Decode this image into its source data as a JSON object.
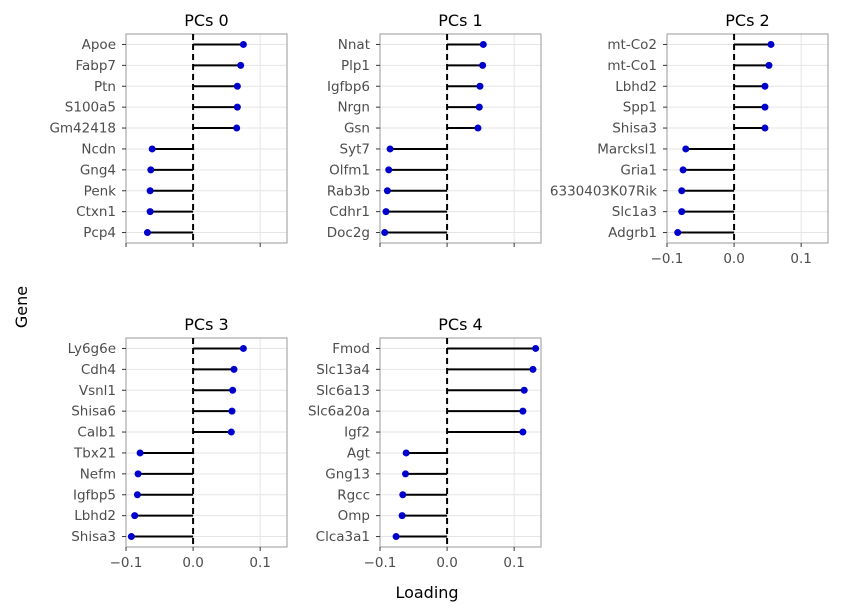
{
  "chart_data": {
    "type": "lollipop",
    "xlabel": "Loading",
    "ylabel": "Gene",
    "xlim": [
      -0.1,
      0.14
    ],
    "xticks": [
      -0.1,
      0.0,
      0.1
    ],
    "xtick_labels": [
      "−0.1",
      "0.0",
      "0.1"
    ],
    "grid": true,
    "colors": {
      "point": "#0000cc",
      "stem": "#000000",
      "zero_line": "#000000",
      "grid": "#e5e5e5",
      "frame": "#999999"
    },
    "panels": [
      {
        "title": "PCs 0",
        "genes": [
          "Apoe",
          "Fabp7",
          "Ptn",
          "S100a5",
          "Gm42418",
          "Ncdn",
          "Gng4",
          "Penk",
          "Ctxn1",
          "Pcp4"
        ],
        "values": [
          0.075,
          0.071,
          0.066,
          0.066,
          0.065,
          -0.061,
          -0.063,
          -0.064,
          -0.064,
          -0.068
        ],
        "show_tick_labels": false
      },
      {
        "title": "PCs 1",
        "genes": [
          "Nnat",
          "Plp1",
          "Igfbp6",
          "Nrgn",
          "Gsn",
          "Syt7",
          "Olfm1",
          "Rab3b",
          "Cdhr1",
          "Doc2g"
        ],
        "values": [
          0.054,
          0.053,
          0.049,
          0.048,
          0.046,
          -0.085,
          -0.087,
          -0.089,
          -0.091,
          -0.093
        ],
        "show_tick_labels": false
      },
      {
        "title": "PCs 2",
        "genes": [
          "mt-Co2",
          "mt-Co1",
          "Lbhd2",
          "Spp1",
          "Shisa3",
          "Marcksl1",
          "Gria1",
          "6330403K07Rik",
          "Slc1a3",
          "Adgrb1"
        ],
        "values": [
          0.055,
          0.052,
          0.046,
          0.046,
          0.046,
          -0.072,
          -0.076,
          -0.078,
          -0.078,
          -0.084
        ],
        "show_tick_labels": true
      },
      {
        "title": "PCs 3",
        "genes": [
          "Ly6g6e",
          "Cdh4",
          "Vsnl1",
          "Shisa6",
          "Calb1",
          "Tbx21",
          "Nefm",
          "Igfbp5",
          "Lbhd2",
          "Shisa3"
        ],
        "values": [
          0.075,
          0.061,
          0.059,
          0.058,
          0.057,
          -0.079,
          -0.082,
          -0.083,
          -0.087,
          -0.092
        ],
        "show_tick_labels": true
      },
      {
        "title": "PCs 4",
        "genes": [
          "Fmod",
          "Slc13a4",
          "Slc6a13",
          "Slc6a20a",
          "Igf2",
          "Agt",
          "Gng13",
          "Rgcc",
          "Omp",
          "Clca3a1"
        ],
        "values": [
          0.132,
          0.128,
          0.115,
          0.113,
          0.113,
          -0.061,
          -0.062,
          -0.066,
          -0.067,
          -0.076
        ],
        "show_tick_labels": true
      }
    ]
  }
}
